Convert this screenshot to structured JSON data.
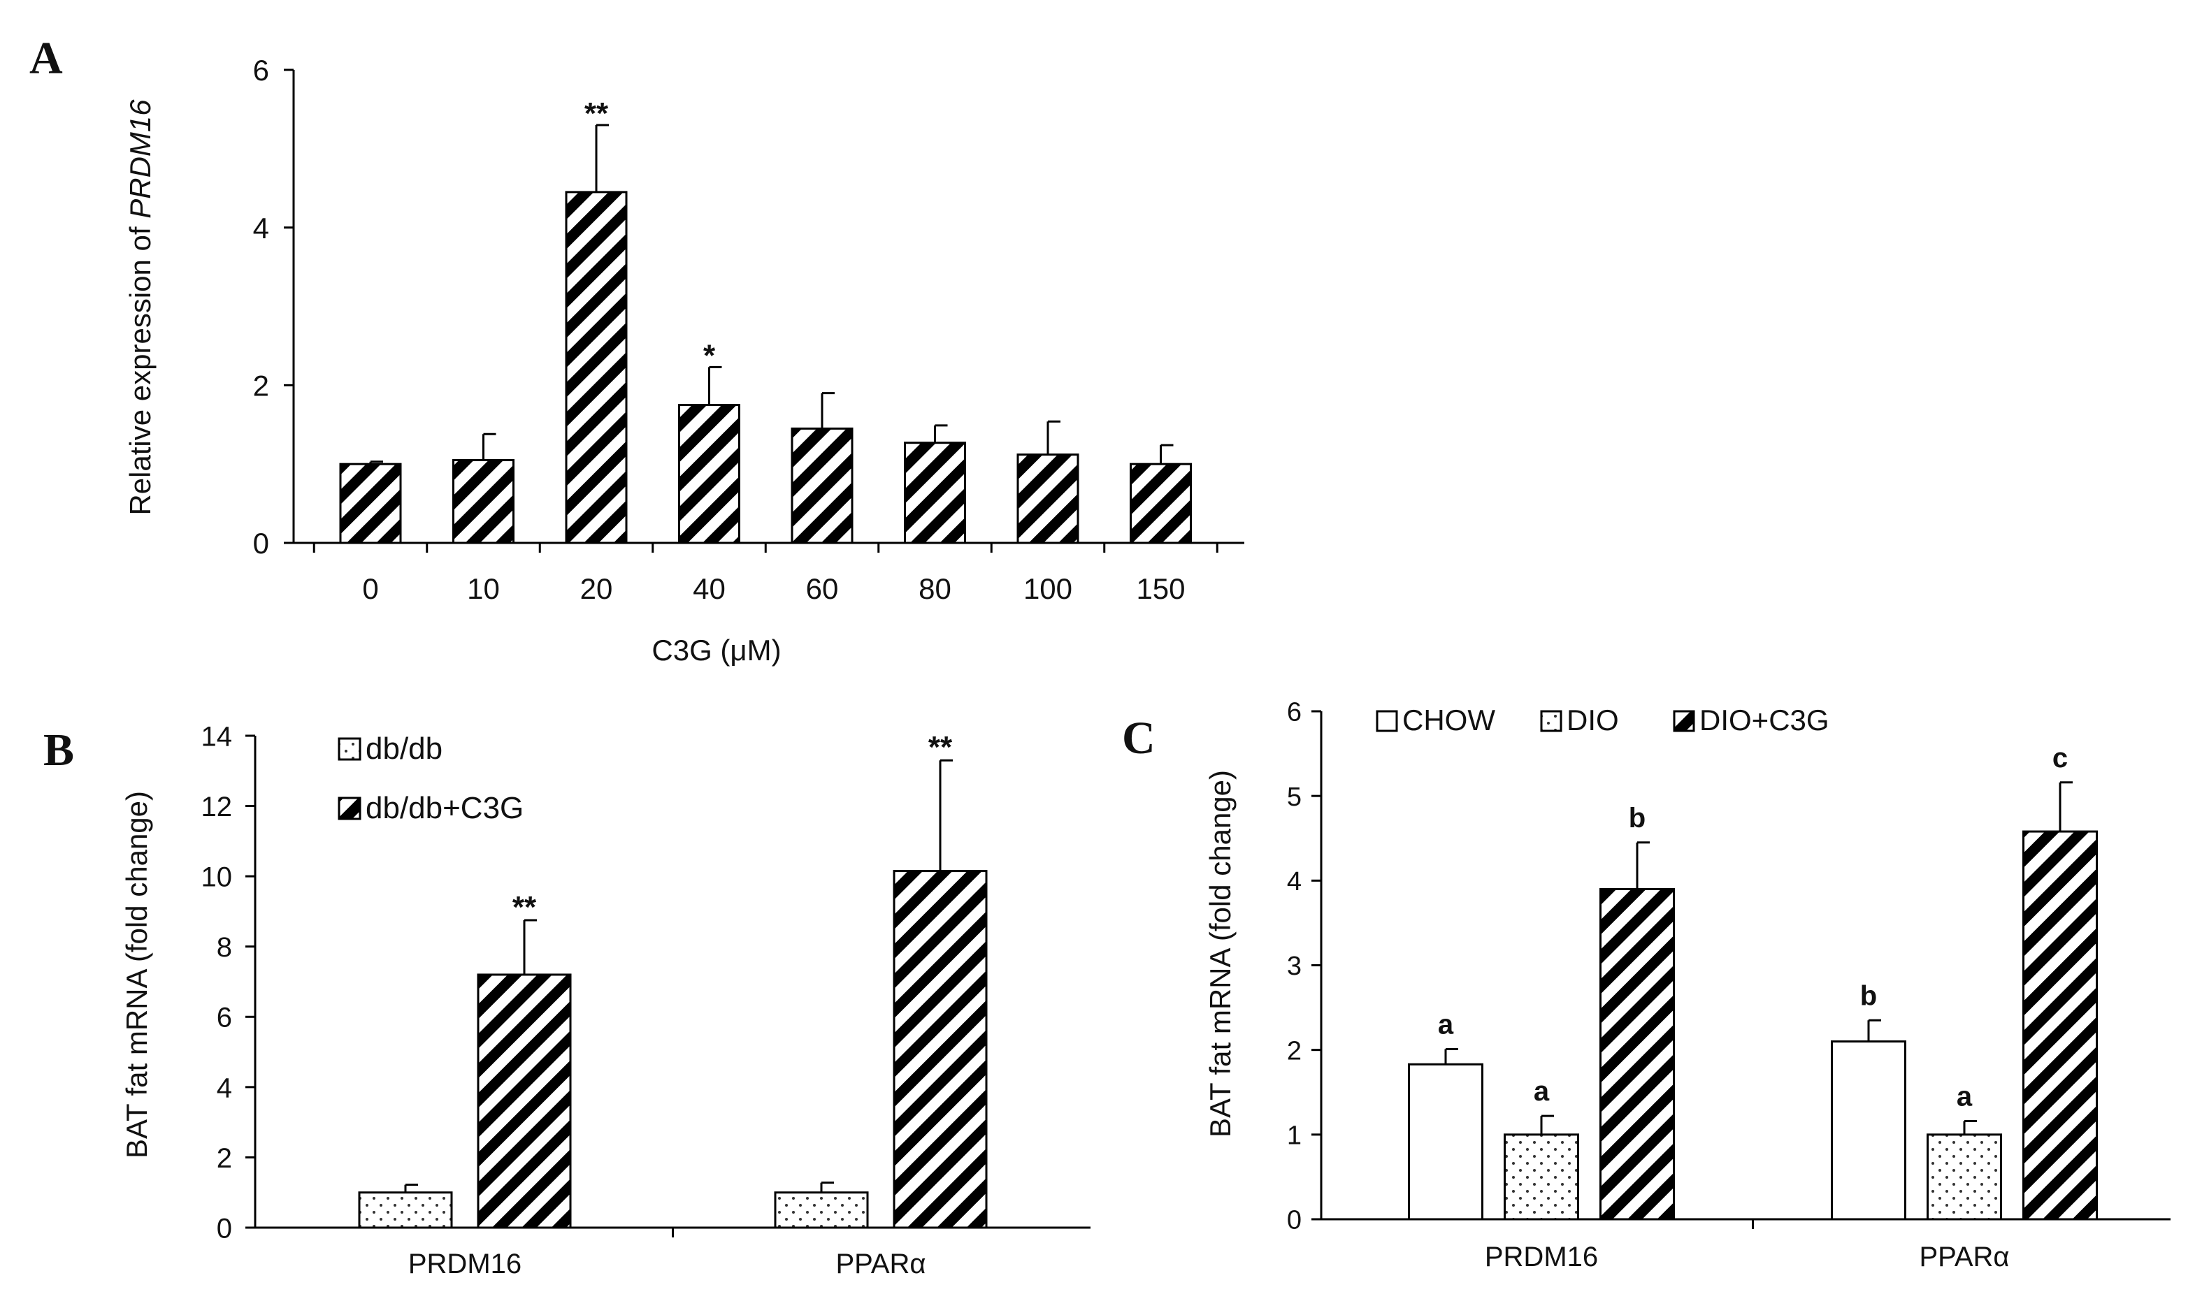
{
  "chart_data": [
    {
      "panel": "A",
      "type": "bar",
      "ylabel_prefix": "Relative expression of ",
      "ylabel_gene": "PRDM16",
      "xlabel": "C3G (μM)",
      "categories": [
        "0",
        "10",
        "20",
        "40",
        "60",
        "80",
        "100",
        "150"
      ],
      "yticks": [
        "0",
        "2",
        "4",
        "6"
      ],
      "ylim": [
        0,
        6
      ],
      "series": [
        {
          "name": "PRDM16",
          "pattern": "hatch",
          "values": [
            1.0,
            1.05,
            4.45,
            1.75,
            1.45,
            1.27,
            1.12,
            1.0
          ],
          "errors": [
            0.03,
            0.33,
            0.85,
            0.48,
            0.45,
            0.22,
            0.42,
            0.24
          ],
          "annotations": [
            "",
            "",
            "**",
            "*",
            "",
            "",
            "",
            ""
          ]
        }
      ]
    },
    {
      "panel": "B",
      "type": "bar",
      "ylabel": "BAT fat mRNA (fold change)",
      "xlabel": "",
      "categories": [
        "PRDM16",
        "PPARα"
      ],
      "yticks": [
        "0",
        "2",
        "4",
        "6",
        "8",
        "10",
        "12",
        "14"
      ],
      "ylim": [
        0,
        14
      ],
      "legend_position": "top-left",
      "series": [
        {
          "name": "db/db",
          "pattern": "dots",
          "values": [
            1.0,
            1.0
          ],
          "errors": [
            0.22,
            0.28
          ],
          "annotations": [
            "",
            ""
          ]
        },
        {
          "name": "db/db+C3G",
          "pattern": "hatch",
          "values": [
            7.2,
            10.15
          ],
          "errors": [
            1.55,
            3.15
          ],
          "annotations": [
            "**",
            "**"
          ]
        }
      ]
    },
    {
      "panel": "C",
      "type": "bar",
      "ylabel": "BAT fat mRNA (fold change)",
      "xlabel": "",
      "categories": [
        "PRDM16",
        "PPARα"
      ],
      "yticks": [
        "0",
        "1",
        "2",
        "3",
        "4",
        "5",
        "6"
      ],
      "ylim": [
        0,
        6
      ],
      "legend_position": "top",
      "series": [
        {
          "name": "CHOW",
          "pattern": "open",
          "values": [
            1.83,
            2.1
          ],
          "errors": [
            0.18,
            0.25
          ],
          "annotations": [
            "a",
            "b"
          ]
        },
        {
          "name": "DIO",
          "pattern": "dots",
          "values": [
            1.0,
            1.0
          ],
          "errors": [
            0.22,
            0.16
          ],
          "annotations": [
            "a",
            "a"
          ]
        },
        {
          "name": "DIO+C3G",
          "pattern": "hatch",
          "values": [
            3.9,
            4.58
          ],
          "errors": [
            0.55,
            0.58
          ],
          "annotations": [
            "b",
            "c"
          ]
        }
      ]
    }
  ]
}
